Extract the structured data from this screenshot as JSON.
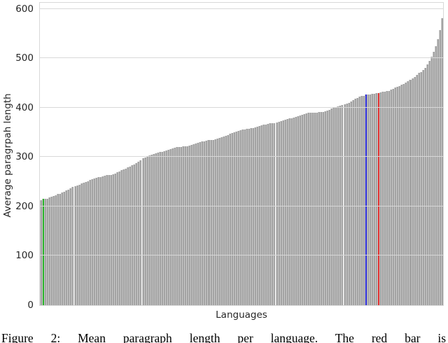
{
  "figure": {
    "caption": "Figure 2: Mean paragraph length per language. The red bar is"
  },
  "chart_data": {
    "type": "bar",
    "title": "",
    "xlabel": "Languages",
    "ylabel": "Average paragrpah length",
    "ylim": [
      0,
      612
    ],
    "yticks": [
      0,
      100,
      200,
      300,
      400,
      500,
      600
    ],
    "grid": true,
    "x_tick_labels": "none (individual languages unlabeled)",
    "bar_count": 190,
    "values": [
      212,
      215,
      215,
      216,
      218,
      220,
      221,
      223,
      225,
      226,
      228,
      230,
      232,
      234,
      236,
      239,
      241,
      243,
      244,
      246,
      248,
      249,
      251,
      253,
      255,
      257,
      258,
      259,
      260,
      261,
      262,
      263,
      263,
      264,
      265,
      267,
      269,
      271,
      273,
      275,
      277,
      279,
      281,
      283,
      285,
      288,
      291,
      294,
      297,
      299,
      301,
      303,
      305,
      306,
      308,
      309,
      310,
      311,
      312,
      313,
      315,
      316,
      318,
      319,
      320,
      320,
      320,
      321,
      321,
      322,
      323,
      324,
      326,
      327,
      329,
      330,
      331,
      332,
      333,
      334,
      334,
      335,
      336,
      337,
      339,
      340,
      342,
      343,
      345,
      347,
      348,
      350,
      351,
      353,
      354,
      355,
      356,
      357,
      357,
      358,
      358,
      360,
      362,
      363,
      364,
      365,
      366,
      367,
      368,
      369,
      369,
      370,
      371,
      372,
      374,
      375,
      377,
      378,
      379,
      380,
      381,
      383,
      384,
      386,
      387,
      388,
      389,
      389,
      390,
      390,
      390,
      391,
      391,
      391,
      393,
      394,
      396,
      398,
      400,
      401,
      402,
      404,
      405,
      406,
      408,
      410,
      412,
      415,
      418,
      420,
      422,
      423,
      424,
      426,
      427,
      427,
      428,
      428,
      429,
      430,
      431,
      432,
      432,
      433,
      434,
      436,
      438,
      440,
      442,
      444,
      446,
      448,
      451,
      453,
      456,
      459,
      462,
      466,
      470,
      472,
      476,
      481,
      487,
      494,
      503,
      513,
      524,
      539,
      557,
      581
    ],
    "highlight": {
      "green_index": 1,
      "blue_index": 153,
      "red_index": 159,
      "green_value": 215,
      "blue_value": 426,
      "red_value": 430
    },
    "colors": {
      "bar": "#a3a3a3",
      "bar_edge": "#c8c8c8",
      "green": "#2bb32b",
      "blue": "#2b2bd9",
      "red": "#df3030",
      "grid": "#d8d8d8",
      "spine": "#d9d9d9",
      "tick_text": "#262626"
    },
    "legend": "none"
  }
}
